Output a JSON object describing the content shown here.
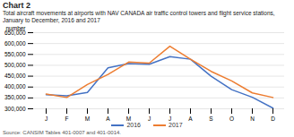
{
  "chart_data": {
    "type": "line",
    "title": "Chart 2",
    "subtitle": [
      "Total aircraft movements at airports with NAV CANADA air traffic control towers and flight service stations,",
      "January to December, 2016 and 2017"
    ],
    "ylabel": "number",
    "source": "Source: CANSIM Tables 401-0007 and 401-0014.",
    "categories": [
      "J",
      "F",
      "M",
      "A",
      "M",
      "J",
      "J",
      "A",
      "S",
      "O",
      "N",
      "D"
    ],
    "series": [
      {
        "name": "2016",
        "color": "#4472c4",
        "values": [
          365000,
          360000,
          375000,
          488000,
          508000,
          505000,
          540000,
          528000,
          450000,
          388000,
          353000,
          303000
        ]
      },
      {
        "name": "2017",
        "color": "#ed7d31",
        "values": [
          368000,
          352000,
          412000,
          458000,
          515000,
          510000,
          588000,
          528000,
          472000,
          428000,
          373000,
          352000
        ]
      }
    ],
    "ylim": [
      300000,
      650000
    ],
    "yticks": [
      {
        "value": 300000,
        "label": "300,000"
      },
      {
        "value": 350000,
        "label": "350,000"
      },
      {
        "value": 400000,
        "label": "400,000"
      },
      {
        "value": 450000,
        "label": "450,000"
      },
      {
        "value": 500000,
        "label": "500,000"
      },
      {
        "value": 550000,
        "label": "550,000"
      },
      {
        "value": 600000,
        "label": "600,000"
      },
      {
        "value": 650000,
        "label": "650,000"
      }
    ],
    "grid": true,
    "legend": "bottom"
  }
}
